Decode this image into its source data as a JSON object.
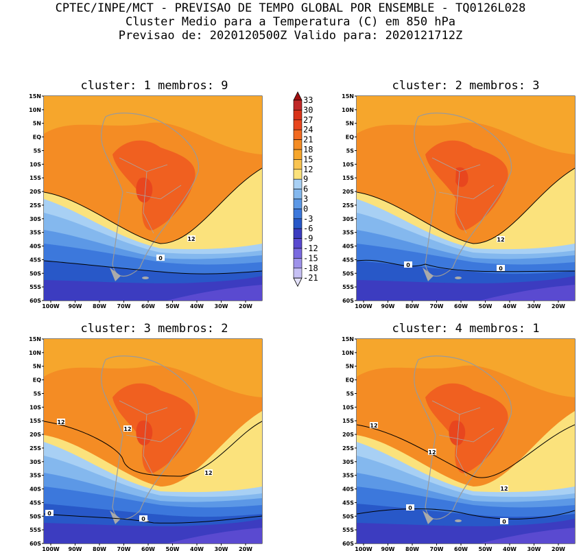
{
  "header": {
    "line1": "CPTEC/INPE/MCT - PREVISAO DE TEMPO GLOBAL POR ENSEMBLE - TQ0126L028",
    "line2": "Cluster Medio para a Temperatura (C) em 850 hPa",
    "line3": "Previsao de: 2020120500Z   Valido para: 2020121712Z"
  },
  "panels": [
    {
      "title": "cluster: 1  membros: 9",
      "contour_labels": [
        "12",
        "0"
      ]
    },
    {
      "title": "cluster: 2  membros: 3",
      "contour_labels": [
        "12",
        "0",
        "0"
      ]
    },
    {
      "title": "cluster: 3  membros: 2",
      "contour_labels": [
        "12",
        "12",
        "12",
        "0",
        "0"
      ]
    },
    {
      "title": "cluster: 4  membros: 1",
      "contour_labels": [
        "12",
        "12",
        "12",
        "0",
        "0"
      ]
    }
  ],
  "lat_ticks": [
    "15N",
    "10N",
    "5N",
    "EQ",
    "5S",
    "10S",
    "15S",
    "20S",
    "25S",
    "30S",
    "35S",
    "40S",
    "45S",
    "50S",
    "55S",
    "60S"
  ],
  "lon_ticks": [
    "100W",
    "90W",
    "80W",
    "70W",
    "60W",
    "50W",
    "40W",
    "30W",
    "20W"
  ],
  "colorbar": {
    "levels": [
      "33",
      "30",
      "27",
      "24",
      "21",
      "18",
      "15",
      "12",
      "9",
      "6",
      "3",
      "0",
      "-3",
      "-6",
      "-9",
      "-12",
      "-15",
      "-18",
      "-21"
    ],
    "colors": [
      "#a01010",
      "#c02828",
      "#d83218",
      "#e8461e",
      "#f26a20",
      "#f48c24",
      "#f6a62c",
      "#f9c451",
      "#fbe27c",
      "#a8d0f4",
      "#84b8ee",
      "#5c98e6",
      "#3c78dc",
      "#2858c8",
      "#3c3cc0",
      "#5a4ad0",
      "#7a6ae0",
      "#9e92ea",
      "#c6c0f4",
      "#e4e2fa"
    ]
  }
}
